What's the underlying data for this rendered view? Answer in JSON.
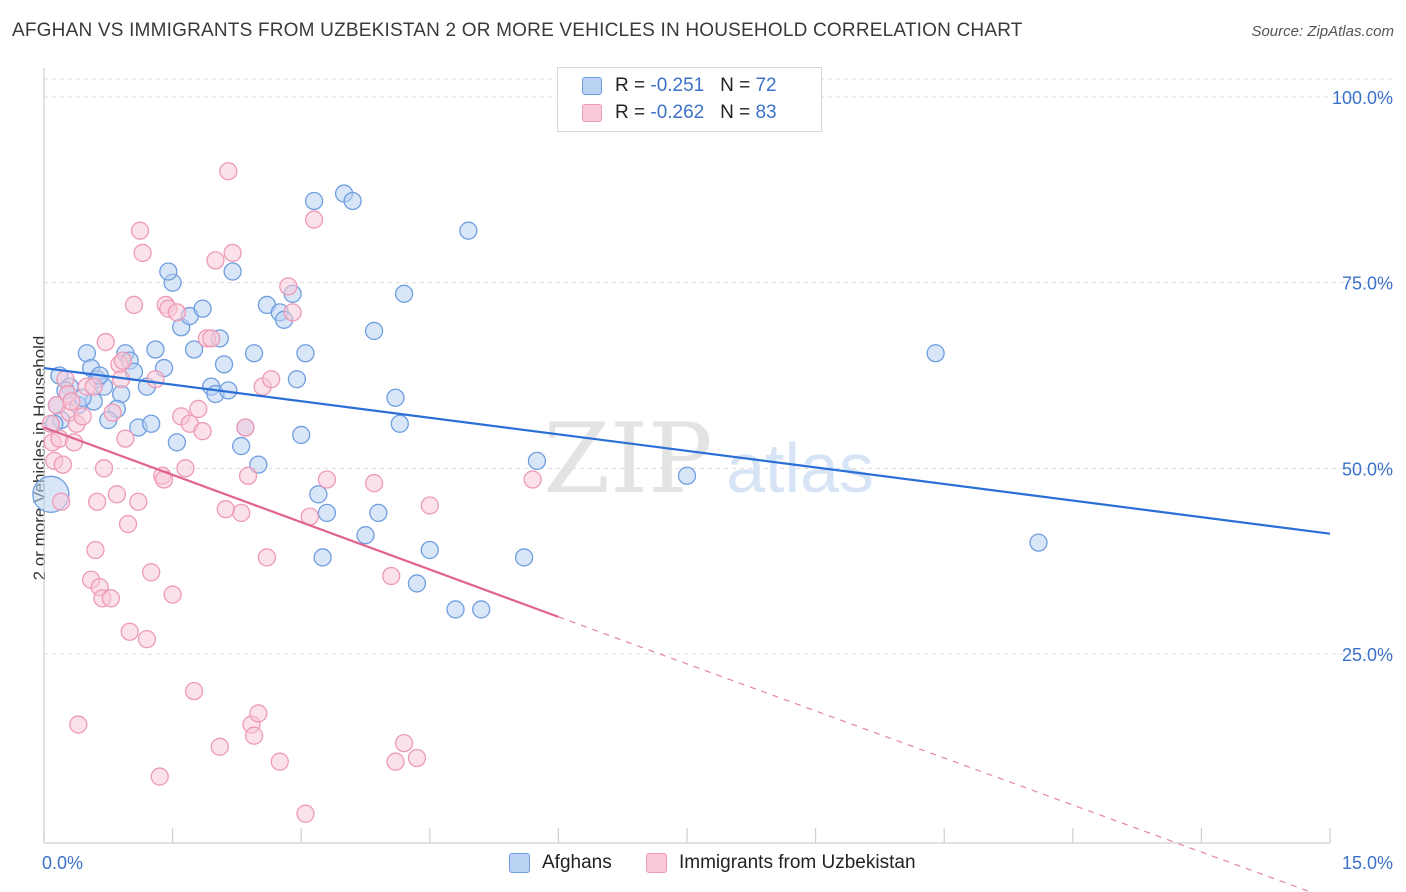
{
  "title": "AFGHAN VS IMMIGRANTS FROM UZBEKISTAN 2 OR MORE VEHICLES IN HOUSEHOLD CORRELATION CHART",
  "source": "Source: ZipAtlas.com",
  "watermark": {
    "zip": "ZIP",
    "atlas": "atlas"
  },
  "legend": {
    "rows": [
      {
        "r_label": "R = ",
        "r_value": "-0.251",
        "n_label": "N = ",
        "n_value": "72"
      },
      {
        "r_label": "R = ",
        "r_value": "-0.262",
        "n_label": "N = ",
        "n_value": "83"
      }
    ]
  },
  "chart_data": {
    "type": "scatter",
    "title": "AFGHAN VS IMMIGRANTS FROM UZBEKISTAN 2 OR MORE VEHICLES IN HOUSEHOLD CORRELATION CHART",
    "xlabel": "",
    "ylabel": "2 or more Vehicles in Household",
    "xlim": [
      0,
      15
    ],
    "ylim": [
      0,
      102
    ],
    "x_tick_labels": [
      "0.0%",
      "15.0%"
    ],
    "y_ticks": [
      25,
      50,
      75,
      100
    ],
    "y_tick_labels": [
      "25.0%",
      "50.0%",
      "75.0%",
      "100.0%"
    ],
    "grid": true,
    "legend_position": "bottom-center",
    "series": [
      {
        "name": "Afghans",
        "color": "#6f9ee0",
        "fill": "#b9d1f3",
        "line_color": "#2b6fd6",
        "r": -0.251,
        "n": 72,
        "trend": {
          "x0": 0,
          "y0": 63.5,
          "x1": 15,
          "y1": 41.2,
          "dashed_from": null
        },
        "points": [
          [
            0.18,
            62.5
          ],
          [
            0.3,
            61
          ],
          [
            0.5,
            65.5
          ],
          [
            0.55,
            63.5
          ],
          [
            0.62,
            62
          ],
          [
            0.7,
            61
          ],
          [
            0.9,
            60
          ],
          [
            0.95,
            65.5
          ],
          [
            1.0,
            64.5
          ],
          [
            1.1,
            55.5
          ],
          [
            1.2,
            61
          ],
          [
            1.25,
            56
          ],
          [
            1.4,
            63.5
          ],
          [
            1.5,
            75
          ],
          [
            1.45,
            76.5
          ],
          [
            1.6,
            69
          ],
          [
            1.7,
            70.5
          ],
          [
            1.75,
            66
          ],
          [
            1.85,
            71.5
          ],
          [
            1.95,
            61
          ],
          [
            2.0,
            60
          ],
          [
            2.1,
            64
          ],
          [
            2.15,
            60.5
          ],
          [
            2.2,
            76.5
          ],
          [
            2.3,
            53
          ],
          [
            2.35,
            55.5
          ],
          [
            2.45,
            65.5
          ],
          [
            2.5,
            50.5
          ],
          [
            2.6,
            72
          ],
          [
            2.75,
            71
          ],
          [
            2.8,
            70
          ],
          [
            2.9,
            73.5
          ],
          [
            2.95,
            62
          ],
          [
            3.0,
            54.5
          ],
          [
            3.05,
            65.5
          ],
          [
            3.15,
            86
          ],
          [
            3.2,
            46.5
          ],
          [
            3.25,
            38
          ],
          [
            3.5,
            87
          ],
          [
            3.6,
            86
          ],
          [
            3.75,
            41
          ],
          [
            3.85,
            68.5
          ],
          [
            3.9,
            44
          ],
          [
            4.1,
            59.5
          ],
          [
            4.15,
            56
          ],
          [
            4.2,
            73.5
          ],
          [
            4.35,
            34.5
          ],
          [
            4.5,
            39
          ],
          [
            4.8,
            31
          ],
          [
            4.95,
            82
          ],
          [
            5.1,
            31
          ],
          [
            5.6,
            38
          ],
          [
            5.75,
            51
          ],
          [
            7.5,
            49
          ],
          [
            10.4,
            65.5
          ],
          [
            11.6,
            40
          ],
          [
            0.15,
            58.5
          ],
          [
            0.4,
            58.5
          ],
          [
            0.58,
            59
          ],
          [
            0.85,
            58
          ],
          [
            0.2,
            56.5
          ],
          [
            1.3,
            66
          ],
          [
            1.05,
            63
          ],
          [
            0.25,
            60.5
          ],
          [
            0.75,
            56.5
          ],
          [
            2.05,
            67.5
          ],
          [
            0.65,
            62.5
          ],
          [
            0.45,
            59.5
          ],
          [
            1.55,
            53.5
          ],
          [
            0.08,
            46.5
          ],
          [
            0.12,
            56
          ],
          [
            3.3,
            44
          ]
        ]
      },
      {
        "name": "Immigrants from Uzbekistan",
        "color": "#ee9ab6",
        "fill": "#f8c9d7",
        "line_color": "#e0648f",
        "r": -0.262,
        "n": 83,
        "trend": {
          "x0": 0,
          "y0": 55.5,
          "x1": 6,
          "y1": 30,
          "dashed_from": 6,
          "dashed_to": {
            "x": 15,
            "y": -8
          }
        },
        "points": [
          [
            0.08,
            56
          ],
          [
            0.1,
            53.5
          ],
          [
            0.12,
            51
          ],
          [
            0.15,
            58.5
          ],
          [
            0.18,
            54
          ],
          [
            0.2,
            45.5
          ],
          [
            0.22,
            50.5
          ],
          [
            0.25,
            62
          ],
          [
            0.28,
            60
          ],
          [
            0.3,
            57.5
          ],
          [
            0.32,
            59
          ],
          [
            0.35,
            53.5
          ],
          [
            0.38,
            56
          ],
          [
            0.4,
            15.5
          ],
          [
            0.5,
            61
          ],
          [
            0.55,
            35
          ],
          [
            0.6,
            39
          ],
          [
            0.62,
            45.5
          ],
          [
            0.65,
            34
          ],
          [
            0.68,
            32.5
          ],
          [
            0.7,
            50
          ],
          [
            0.72,
            67
          ],
          [
            0.78,
            32.5
          ],
          [
            0.8,
            57.5
          ],
          [
            0.85,
            46.5
          ],
          [
            0.88,
            64
          ],
          [
            0.9,
            62
          ],
          [
            0.92,
            64.5
          ],
          [
            0.95,
            54
          ],
          [
            0.98,
            42.5
          ],
          [
            1.0,
            28
          ],
          [
            1.05,
            72
          ],
          [
            1.1,
            45.5
          ],
          [
            1.15,
            79
          ],
          [
            1.2,
            27
          ],
          [
            1.25,
            36
          ],
          [
            1.3,
            62
          ],
          [
            1.35,
            8.5
          ],
          [
            1.38,
            49
          ],
          [
            1.4,
            48.5
          ],
          [
            1.42,
            72
          ],
          [
            1.45,
            71.5
          ],
          [
            1.5,
            33
          ],
          [
            1.55,
            71
          ],
          [
            1.6,
            57
          ],
          [
            1.65,
            50
          ],
          [
            1.7,
            56
          ],
          [
            1.75,
            20
          ],
          [
            1.8,
            58
          ],
          [
            1.85,
            55
          ],
          [
            1.9,
            67.5
          ],
          [
            1.95,
            67.5
          ],
          [
            2.0,
            78
          ],
          [
            2.05,
            12.5
          ],
          [
            2.15,
            90
          ],
          [
            2.2,
            79
          ],
          [
            2.3,
            44
          ],
          [
            2.35,
            55.5
          ],
          [
            2.38,
            49
          ],
          [
            2.42,
            15.5
          ],
          [
            2.45,
            14
          ],
          [
            2.5,
            17
          ],
          [
            2.55,
            61
          ],
          [
            2.6,
            38
          ],
          [
            2.65,
            62
          ],
          [
            2.75,
            10.5
          ],
          [
            2.85,
            74.5
          ],
          [
            2.9,
            71
          ],
          [
            3.05,
            3.5
          ],
          [
            3.1,
            43.5
          ],
          [
            3.15,
            83.5
          ],
          [
            3.3,
            48.5
          ],
          [
            3.85,
            48
          ],
          [
            4.05,
            35.5
          ],
          [
            4.1,
            10.5
          ],
          [
            4.2,
            13
          ],
          [
            4.35,
            11
          ],
          [
            4.5,
            45
          ],
          [
            5.7,
            48.5
          ],
          [
            1.12,
            82
          ],
          [
            0.45,
            57
          ],
          [
            0.58,
            61
          ],
          [
            2.12,
            44.5
          ]
        ]
      }
    ]
  }
}
